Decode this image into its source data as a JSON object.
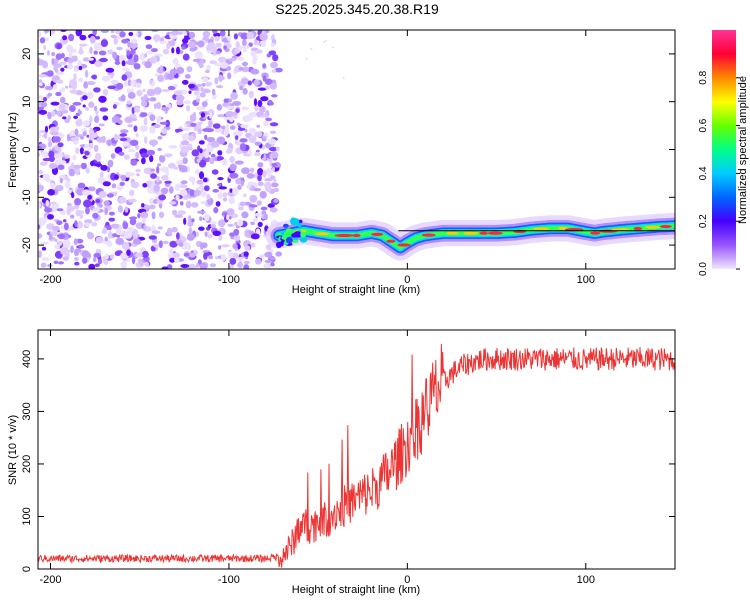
{
  "title": "S225.2025.345.20.38.R19",
  "chart_data": [
    {
      "type": "heatmap",
      "xlabel": "Height of straight line (km)",
      "ylabel": "Frequency (Hz)",
      "xlim": [
        -207,
        150
      ],
      "ylim": [
        -25,
        25
      ],
      "x_ticks": [
        -200,
        -100,
        0,
        100
      ],
      "x_tick_labels": [
        "-200",
        "-100",
        "0",
        "100"
      ],
      "y_ticks": [
        20,
        10,
        0,
        -10,
        -20
      ],
      "y_tick_labels": [
        "20",
        "10",
        "0",
        "-10",
        "-20"
      ],
      "noise_region_x": [
        -207,
        -72
      ],
      "track": {
        "x": [
          -72,
          -65,
          -58,
          -50,
          -42,
          -35,
          -28,
          -20,
          -14,
          -8,
          -4,
          0,
          5,
          10,
          20,
          30,
          40,
          50,
          60,
          70,
          80,
          90,
          100,
          105,
          110,
          120,
          130,
          140,
          150
        ],
        "y": [
          -18,
          -17.5,
          -17,
          -17.5,
          -18,
          -18,
          -18,
          -17.5,
          -18,
          -19.5,
          -20.5,
          -19.5,
          -18.5,
          -18,
          -17.5,
          -17.5,
          -17.5,
          -17.5,
          -17.3,
          -16.8,
          -16.5,
          -16.5,
          -17.2,
          -17.5,
          -17.2,
          -16.8,
          -16.5,
          -16.2,
          -16
        ]
      },
      "reference_line_y": -17,
      "colorbar": {
        "label": "Normalized spectral amplitude",
        "range": [
          0,
          1
        ],
        "ticks": [
          0.0,
          0.2,
          0.4,
          0.6,
          0.8
        ],
        "tick_labels": [
          "0.0",
          "0.2",
          "0.4",
          "0.6",
          "0.8"
        ],
        "colors": [
          "#f0e6ff",
          "#9955ff",
          "#4400ff",
          "#0066ff",
          "#00ccff",
          "#00ff88",
          "#66ff00",
          "#ffff00",
          "#ff8800",
          "#ff0033",
          "#ff3399"
        ]
      }
    },
    {
      "type": "line",
      "xlabel": "Height of straight line (km)",
      "ylabel": "SNR (10 * v/v)",
      "xlim": [
        -207,
        150
      ],
      "ylim": [
        0,
        455
      ],
      "x_ticks": [
        -200,
        -100,
        0,
        100
      ],
      "x_tick_labels": [
        "-200",
        "-100",
        "0",
        "100"
      ],
      "y_ticks": [
        0,
        100,
        200,
        300,
        400
      ],
      "y_tick_labels": [
        "0",
        "100",
        "200",
        "300",
        "400"
      ],
      "series": [
        {
          "name": "SNR",
          "color": "#ee3333",
          "x": [
            -207,
            -180,
            -150,
            -120,
            -100,
            -80,
            -70,
            -65,
            -60,
            -55,
            -50,
            -45,
            -40,
            -35,
            -30,
            -25,
            -20,
            -15,
            -10,
            -5,
            0,
            5,
            10,
            15,
            20,
            25,
            30,
            35,
            40,
            50,
            60,
            70,
            80,
            90,
            100,
            110,
            120,
            130,
            140,
            150
          ],
          "y": [
            20,
            20,
            20,
            20,
            20,
            20,
            25,
            45,
            85,
            80,
            90,
            95,
            110,
            120,
            130,
            140,
            150,
            165,
            185,
            210,
            240,
            270,
            300,
            330,
            355,
            372,
            385,
            392,
            398,
            400,
            400,
            400,
            400,
            400,
            398,
            400,
            400,
            400,
            400,
            398
          ]
        }
      ]
    }
  ]
}
